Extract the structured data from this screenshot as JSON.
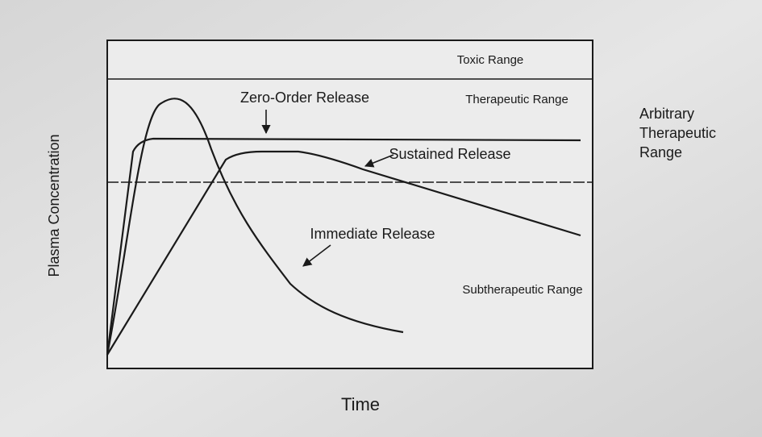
{
  "title_axis": {
    "y": "Plasma Concentration",
    "x": "Time"
  },
  "ranges": {
    "toxic": "Toxic Range",
    "therapeutic": "Therapeutic Range",
    "subtherapeutic": "Subtherapeutic Range",
    "arbitrary": [
      "Arbitrary",
      "Therapeutic",
      "Range"
    ]
  },
  "curves": {
    "zero_order": "Zero-Order Release",
    "sustained": "Sustained Release",
    "immediate": "Immediate Release"
  }
}
